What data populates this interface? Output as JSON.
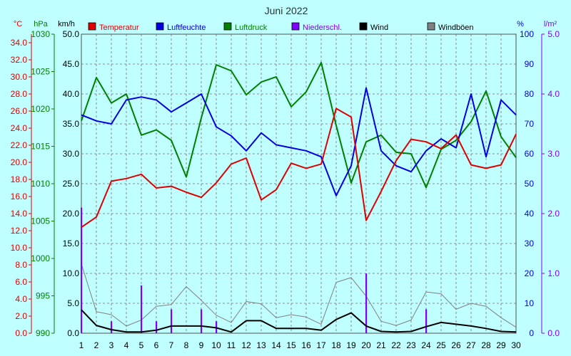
{
  "chart_data": {
    "type": "line",
    "title": "Juni 2022",
    "x": [
      1,
      2,
      3,
      4,
      5,
      6,
      7,
      8,
      9,
      10,
      11,
      12,
      13,
      14,
      15,
      16,
      17,
      18,
      19,
      20,
      21,
      22,
      23,
      24,
      25,
      26,
      27,
      28,
      29,
      30
    ],
    "units": {
      "temp": "°C",
      "pressure": "hPa",
      "wind": "km/h",
      "humidity": "%",
      "precip": "l/m²"
    },
    "axes": {
      "temp": {
        "range": [
          0,
          35
        ],
        "ticks": [
          "0.0",
          "2.0",
          "4.0",
          "6.0",
          "8.0",
          "10.0",
          "12.0",
          "14.0",
          "16.0",
          "18.0",
          "20.0",
          "22.0",
          "24.0",
          "26.0",
          "28.0",
          "30.0",
          "32.0",
          "34.0"
        ]
      },
      "pressure": {
        "range": [
          990,
          1030
        ],
        "ticks": [
          "990",
          "995",
          "1000",
          "1005",
          "1010",
          "1015",
          "1020",
          "1025",
          "1030"
        ]
      },
      "wind": {
        "range": [
          0,
          50
        ],
        "ticks": [
          "0.0",
          "5.0",
          "10.0",
          "15.0",
          "20.0",
          "25.0",
          "30.0",
          "35.0",
          "40.0",
          "45.0",
          "50.0"
        ]
      },
      "humidity": {
        "range": [
          0,
          100
        ],
        "ticks": [
          "0",
          "10",
          "20",
          "30",
          "40",
          "50",
          "60",
          "70",
          "80",
          "90",
          "100"
        ]
      },
      "precip": {
        "range": [
          0,
          5
        ],
        "ticks": [
          "0.0",
          "1.0",
          "2.0",
          "3.0",
          "4.0",
          "5.0"
        ]
      }
    },
    "grid": true,
    "legend_position": "top",
    "series": [
      {
        "name": "Temperatur",
        "color": "#e00000",
        "axis": "temp",
        "kind": "line",
        "values": [
          12.4,
          13.6,
          17.8,
          18.1,
          18.6,
          17.0,
          17.2,
          16.5,
          15.9,
          17.6,
          19.8,
          20.5,
          15.6,
          16.8,
          19.9,
          19.3,
          19.8,
          26.3,
          25.3,
          13.2,
          16.6,
          20.2,
          22.7,
          22.4,
          21.6,
          23.2,
          19.7,
          19.3,
          19.7,
          23.3
        ]
      },
      {
        "name": "Luftfeuchte",
        "color": "#0000e0",
        "axis": "humidity",
        "kind": "line",
        "values": [
          73,
          71,
          70,
          78,
          79,
          78,
          74,
          77,
          80,
          69,
          66,
          61,
          67,
          63,
          62,
          61,
          59,
          46,
          56,
          82,
          61,
          56,
          54,
          61,
          65,
          62,
          80,
          59,
          78,
          73
        ]
      },
      {
        "name": "Luftdruck",
        "color": "#008000",
        "axis": "pressure",
        "kind": "line",
        "values": [
          1018.4,
          1024.2,
          1020.8,
          1022.0,
          1016.5,
          1017.2,
          1015.8,
          1010.9,
          1018.8,
          1025.9,
          1025.1,
          1021.9,
          1023.6,
          1024.3,
          1020.3,
          1022.3,
          1026.2,
          1017.8,
          1010.1,
          1015.6,
          1016.5,
          1014.2,
          1014.0,
          1009.5,
          1014.6,
          1015.8,
          1018.3,
          1022.4,
          1016.3,
          1013.5
        ]
      },
      {
        "name": "Niederschl.",
        "color": "#8000ff",
        "axis": "precip",
        "kind": "bar",
        "values": [
          2.1,
          0.0,
          0.2,
          0.0,
          0.8,
          0.2,
          0.4,
          0.0,
          0.4,
          0.2,
          0.0,
          0.0,
          0.0,
          0.0,
          0.0,
          0.0,
          0.0,
          0.0,
          0.0,
          1.0,
          0.0,
          0.0,
          0.0,
          0.4,
          0.0,
          0.0,
          0.0,
          0.0,
          0.0,
          0.0
        ]
      },
      {
        "name": "Wind",
        "color": "#000000",
        "axis": "wind",
        "kind": "line",
        "values": [
          3.9,
          1.3,
          0.6,
          0.2,
          0.2,
          0.5,
          1.2,
          1.2,
          1.2,
          0.9,
          0.2,
          2.1,
          2.1,
          0.8,
          0.8,
          0.8,
          0.5,
          2.3,
          3.4,
          1.2,
          0.3,
          0.2,
          0.3,
          1.1,
          1.8,
          1.5,
          1.2,
          0.8,
          0.3,
          0.2
        ]
      },
      {
        "name": "Windböen",
        "color": "#808080",
        "axis": "wind",
        "kind": "line",
        "values": [
          11.6,
          3.6,
          3.1,
          1.2,
          2.2,
          4.5,
          4.8,
          7.8,
          5.5,
          3.0,
          1.8,
          5.3,
          4.9,
          2.6,
          3.1,
          2.7,
          1.5,
          8.5,
          9.3,
          6.2,
          2.0,
          1.3,
          2.2,
          6.9,
          6.6,
          4.0,
          5.0,
          4.5,
          2.6,
          1.0
        ]
      }
    ]
  }
}
